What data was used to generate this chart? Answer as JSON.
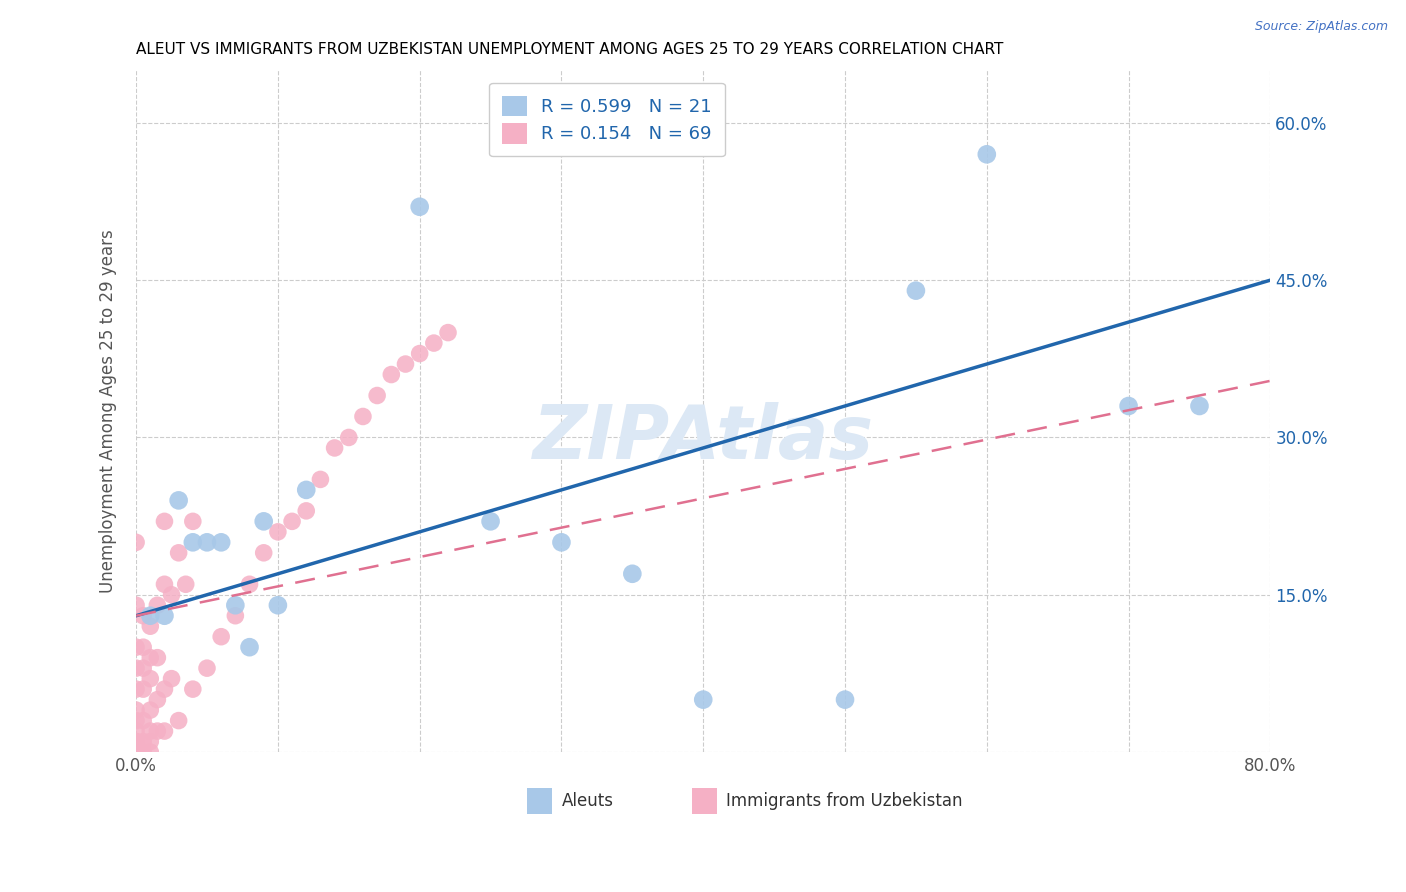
{
  "title": "ALEUT VS IMMIGRANTS FROM UZBEKISTAN UNEMPLOYMENT AMONG AGES 25 TO 29 YEARS CORRELATION CHART",
  "source": "Source: ZipAtlas.com",
  "ylabel": "Unemployment Among Ages 25 to 29 years",
  "xlim": [
    0.0,
    0.8
  ],
  "ylim": [
    0.0,
    0.65
  ],
  "xtick_positions": [
    0.0,
    0.1,
    0.2,
    0.3,
    0.4,
    0.5,
    0.6,
    0.7,
    0.8
  ],
  "xtick_labels": [
    "0.0%",
    "",
    "",
    "",
    "",
    "",
    "",
    "",
    "80.0%"
  ],
  "ytick_positions": [
    0.0,
    0.15,
    0.3,
    0.45,
    0.6
  ],
  "ytick_labels_right": [
    "",
    "15.0%",
    "30.0%",
    "45.0%",
    "60.0%"
  ],
  "aleuts_color": "#a8c8e8",
  "uzbekistan_color": "#f5b0c5",
  "trendline_aleuts_color": "#2166ac",
  "trendline_uzbekistan_color": "#e07090",
  "watermark_text": "ZIPAtlas",
  "watermark_color": "#dce8f5",
  "trendline_aleuts_slope": 0.4,
  "trendline_aleuts_intercept": 0.13,
  "trendline_uzbekistan_slope": 0.28,
  "trendline_uzbekistan_intercept": 0.13,
  "aleuts_x": [
    0.01,
    0.02,
    0.03,
    0.04,
    0.05,
    0.06,
    0.07,
    0.08,
    0.09,
    0.1,
    0.12,
    0.2,
    0.25,
    0.3,
    0.35,
    0.4,
    0.5,
    0.55,
    0.6,
    0.7,
    0.75
  ],
  "aleuts_y": [
    0.13,
    0.13,
    0.24,
    0.2,
    0.2,
    0.2,
    0.14,
    0.1,
    0.22,
    0.14,
    0.25,
    0.52,
    0.22,
    0.2,
    0.17,
    0.05,
    0.05,
    0.44,
    0.57,
    0.33,
    0.33
  ],
  "uzbekistan_x": [
    0.0,
    0.0,
    0.0,
    0.0,
    0.0,
    0.0,
    0.0,
    0.0,
    0.0,
    0.0,
    0.0,
    0.0,
    0.0,
    0.005,
    0.005,
    0.005,
    0.005,
    0.005,
    0.005,
    0.005,
    0.01,
    0.01,
    0.01,
    0.01,
    0.01,
    0.01,
    0.01,
    0.015,
    0.015,
    0.015,
    0.015,
    0.02,
    0.02,
    0.02,
    0.02,
    0.025,
    0.025,
    0.03,
    0.03,
    0.035,
    0.04,
    0.04,
    0.05,
    0.06,
    0.07,
    0.08,
    0.09,
    0.1,
    0.11,
    0.12,
    0.13,
    0.14,
    0.15,
    0.16,
    0.17,
    0.18,
    0.19,
    0.2,
    0.21,
    0.22
  ],
  "uzbekistan_y": [
    0.0,
    0.0,
    0.0,
    0.01,
    0.01,
    0.02,
    0.03,
    0.04,
    0.06,
    0.08,
    0.1,
    0.14,
    0.2,
    0.0,
    0.01,
    0.03,
    0.06,
    0.08,
    0.1,
    0.13,
    0.0,
    0.01,
    0.02,
    0.04,
    0.07,
    0.09,
    0.12,
    0.02,
    0.05,
    0.09,
    0.14,
    0.02,
    0.06,
    0.16,
    0.22,
    0.07,
    0.15,
    0.03,
    0.19,
    0.16,
    0.06,
    0.22,
    0.08,
    0.11,
    0.13,
    0.16,
    0.19,
    0.21,
    0.22,
    0.23,
    0.26,
    0.29,
    0.3,
    0.32,
    0.34,
    0.36,
    0.37,
    0.38,
    0.39,
    0.4
  ]
}
